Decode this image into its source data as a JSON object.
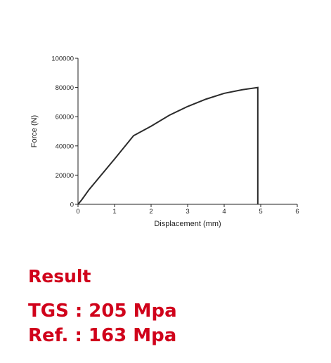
{
  "chart_data": {
    "type": "line",
    "x_label": "Displacement (mm)",
    "y_label": "Force (N)",
    "x": [
      0,
      0.1,
      0.3,
      0.5,
      1,
      1.52,
      2,
      2.5,
      3,
      3.5,
      4,
      4.5,
      4.92,
      4.92
    ],
    "values": [
      0,
      3000,
      10000,
      16000,
      31000,
      47000,
      53500,
      61000,
      67000,
      72000,
      76000,
      78500,
      80000,
      0
    ],
    "color": "#2b2b2b",
    "xlim": [
      0,
      6
    ],
    "xticks": [
      0,
      1,
      2,
      3,
      4,
      5,
      6
    ],
    "ylim": [
      0,
      100000
    ],
    "yticks": [
      0,
      20000,
      40000,
      60000,
      80000,
      100000
    ]
  },
  "result": {
    "heading": "Result",
    "lines": [
      "TGS : 205 Mpa",
      "Ref. : 163 Mpa"
    ]
  }
}
